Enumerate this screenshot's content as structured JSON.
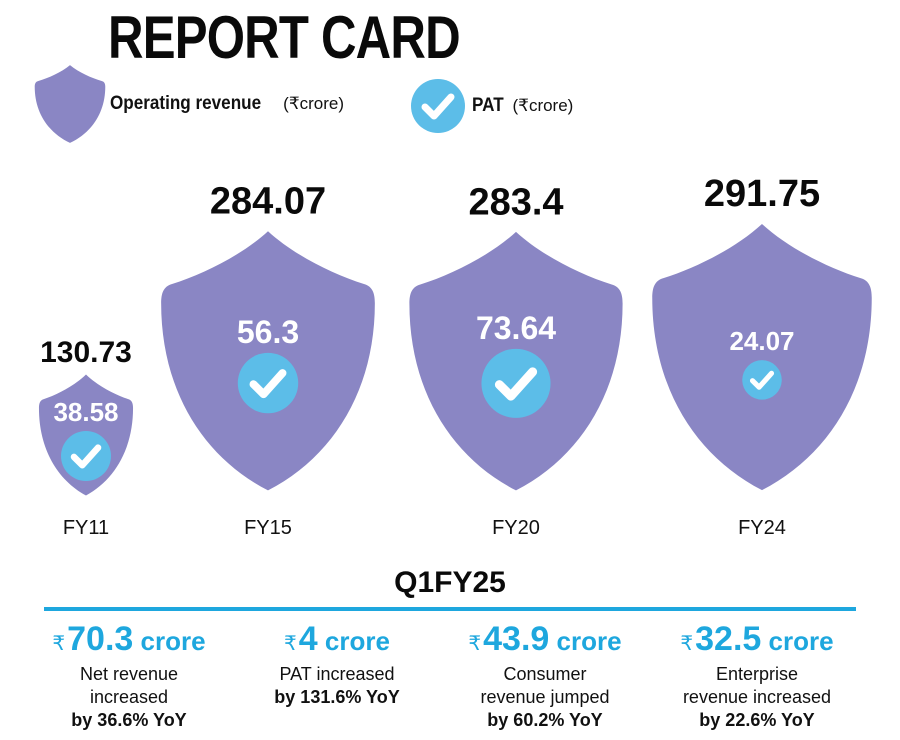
{
  "header": {
    "title": "REPORT CARD"
  },
  "legend": {
    "revenue_label": "Operating revenue",
    "revenue_unit": "(₹crore)",
    "pat_label": "PAT",
    "pat_unit": "(₹crore)",
    "shield_color": "#8a86c4",
    "check_color": "#5cbde8"
  },
  "chart_data": {
    "type": "bar",
    "title": "REPORT CARD",
    "categories": [
      "FY11",
      "FY15",
      "FY20",
      "FY24"
    ],
    "series": [
      {
        "name": "Operating revenue (₹crore)",
        "values": [
          130.73,
          284.07,
          283.4,
          291.75
        ]
      },
      {
        "name": "PAT (₹crore)",
        "values": [
          38.58,
          56.3,
          73.64,
          24.07
        ]
      }
    ],
    "revenue_labels": [
      "130.73",
      "284.07",
      "283.4",
      "291.75"
    ],
    "pat_labels": [
      "38.58",
      "56.3",
      "73.64",
      "24.07"
    ],
    "xlabel": "",
    "ylabel": "",
    "legend_position": "top-left"
  },
  "quarter": {
    "title": "Q1FY25",
    "stats": [
      {
        "rupee": "₹",
        "value": "70.3",
        "unit": "crore",
        "desc_lines": [
          "Net revenue",
          "increased"
        ],
        "yoy": "by 36.6% YoY"
      },
      {
        "rupee": "₹",
        "value": "4",
        "unit": "crore",
        "desc_lines": [
          "PAT increased"
        ],
        "yoy": "by 131.6% YoY"
      },
      {
        "rupee": "₹",
        "value": "43.9",
        "unit": "crore",
        "desc_lines": [
          "Consumer",
          "revenue jumped"
        ],
        "yoy": "by 60.2% YoY"
      },
      {
        "rupee": "₹",
        "value": "32.5",
        "unit": "crore",
        "desc_lines": [
          "Enterprise",
          "revenue increased"
        ],
        "yoy": "by 22.6% YoY"
      }
    ]
  }
}
